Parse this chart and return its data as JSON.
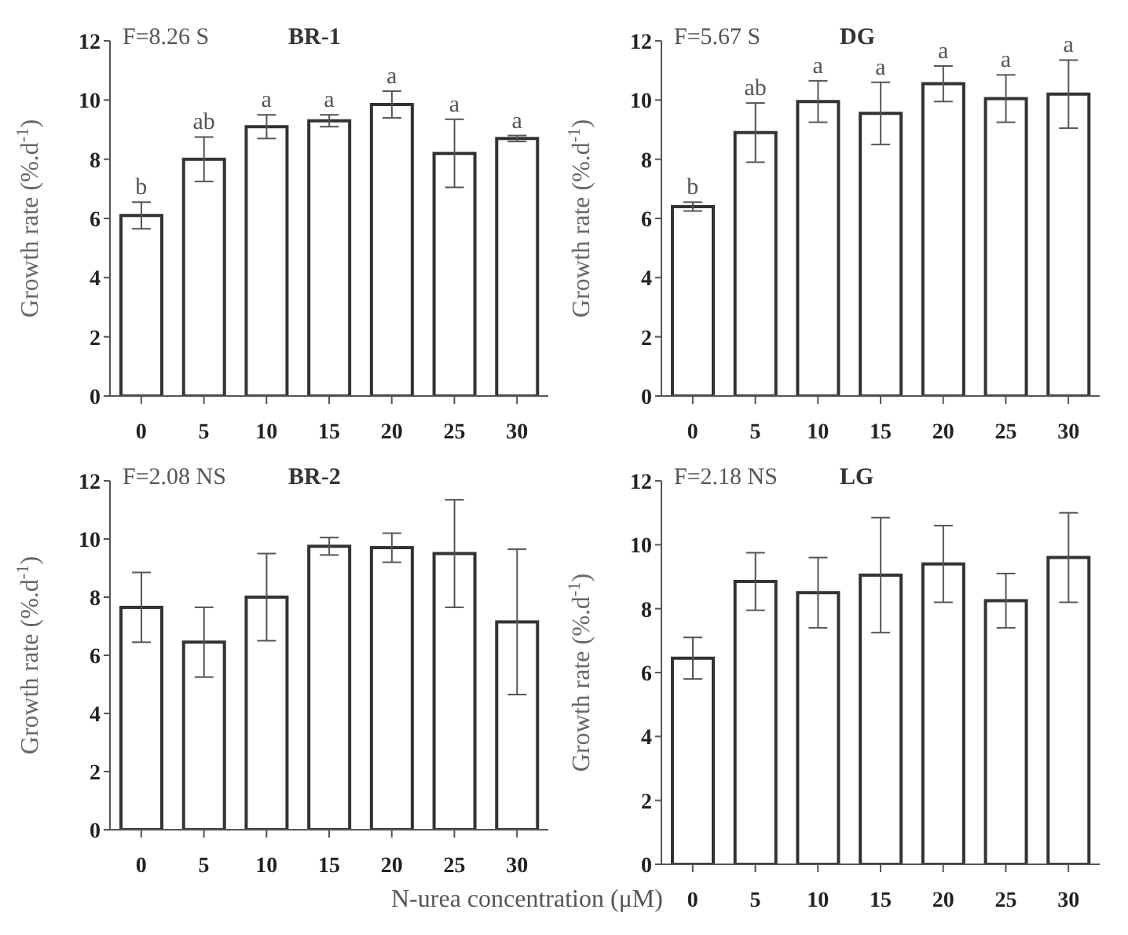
{
  "chart_data": [
    {
      "type": "bar",
      "title": "BR-1",
      "ylabel": "Growth rate  (%.d$^{-1}$)",
      "categories": [
        "0",
        "5",
        "10",
        "15",
        "20",
        "25",
        "30"
      ],
      "color": "#ffffff",
      "values": [
        6.1,
        8.0,
        9.1,
        9.3,
        9.85,
        8.2,
        8.7
      ],
      "errors": [
        0.45,
        0.75,
        0.4,
        0.2,
        0.45,
        1.15,
        0.1
      ],
      "ylim": [
        0,
        12
      ],
      "yticks": [
        0,
        2,
        4,
        6,
        8,
        10,
        12
      ],
      "grid": false,
      "annotations": [
        "F=8.26 S",
        {
          "text": "b",
          "x": "0",
          "y": 6.55
        },
        {
          "text": "ab",
          "x": "5",
          "y": 8.75
        },
        {
          "text": "a",
          "x": "10",
          "y": 9.5
        },
        {
          "text": "a",
          "x": "15",
          "y": 9.5
        },
        {
          "text": "a",
          "x": "20",
          "y": 10.3
        },
        {
          "text": "a",
          "x": "25",
          "y": 9.35
        },
        {
          "text": "a",
          "x": "30",
          "y": 8.8
        }
      ]
    },
    {
      "type": "bar",
      "title": "DG",
      "ylabel": "Growth rate  (%.d$^{-1}$)",
      "categories": [
        "0",
        "5",
        "10",
        "15",
        "20",
        "25",
        "30"
      ],
      "color": "#ffffff",
      "values": [
        6.4,
        8.9,
        9.95,
        9.55,
        10.55,
        10.05,
        10.2
      ],
      "errors": [
        0.15,
        1.0,
        0.7,
        1.05,
        0.6,
        0.8,
        1.15
      ],
      "ylim": [
        0,
        12
      ],
      "yticks": [
        0,
        2,
        4,
        6,
        8,
        10,
        12
      ],
      "grid": false,
      "annotations": [
        "F=5.67 S",
        {
          "text": "b",
          "x": "0",
          "y": 6.55
        },
        {
          "text": "ab",
          "x": "5",
          "y": 9.9
        },
        {
          "text": "a",
          "x": "10",
          "y": 10.65
        },
        {
          "text": "a",
          "x": "15",
          "y": 10.6
        },
        {
          "text": "a",
          "x": "20",
          "y": 11.15
        },
        {
          "text": "a",
          "x": "25",
          "y": 10.85
        },
        {
          "text": "a",
          "x": "30",
          "y": 11.35
        }
      ]
    },
    {
      "type": "bar",
      "title": "BR-2",
      "ylabel": "Growth rate  (%.d$^{-1}$)",
      "xlabel": "N-urea concentration (μM)",
      "categories": [
        "0",
        "5",
        "10",
        "15",
        "20",
        "25",
        "30"
      ],
      "color": "#ffffff",
      "values": [
        7.65,
        6.45,
        8.0,
        9.75,
        9.7,
        9.5,
        7.15
      ],
      "errors": [
        1.2,
        1.2,
        1.5,
        0.3,
        0.5,
        1.85,
        2.5
      ],
      "ylim": [
        0,
        12
      ],
      "yticks": [
        0,
        2,
        4,
        6,
        8,
        10,
        12
      ],
      "grid": false,
      "annotations": [
        "F=2.08 NS"
      ]
    },
    {
      "type": "bar",
      "title": "LG",
      "ylabel": "Growth rate  (%.d$^{-1}$)",
      "categories": [
        "0",
        "5",
        "10",
        "15",
        "20",
        "25",
        "30"
      ],
      "color": "#ffffff",
      "values": [
        6.45,
        8.85,
        8.5,
        9.05,
        9.4,
        8.25,
        9.6
      ],
      "errors": [
        0.65,
        0.9,
        1.1,
        1.8,
        1.2,
        0.85,
        1.4
      ],
      "ylim": [
        0,
        12
      ],
      "yticks": [
        0,
        2,
        4,
        6,
        8,
        10,
        12
      ],
      "grid": false,
      "annotations": [
        "F=2.18 NS"
      ]
    }
  ]
}
